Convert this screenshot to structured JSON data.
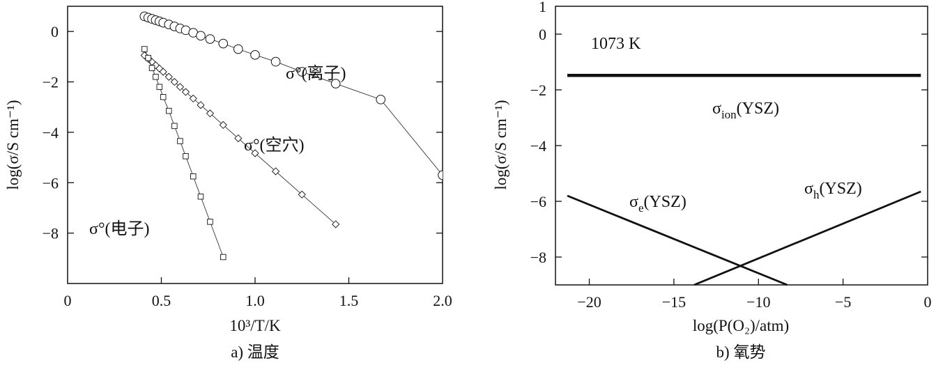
{
  "colors": {
    "ink": "#111111",
    "background": "#ffffff"
  },
  "chart_data": [
    {
      "id": "a",
      "type": "scatter",
      "caption": "a) 温度",
      "xlabel": "10³/T/K",
      "ylabel": "log(σ/S cm⁻¹)",
      "xlim": [
        0,
        2.0
      ],
      "ylim": [
        -10,
        1
      ],
      "xticks": [
        {
          "v": 0,
          "t": "0"
        },
        {
          "v": 0.5,
          "t": "0.5"
        },
        {
          "v": 1.0,
          "t": "1.0"
        },
        {
          "v": 1.5,
          "t": "1.5"
        },
        {
          "v": 2.0,
          "t": "2.0"
        }
      ],
      "yticks": [
        {
          "v": 0,
          "t": "0"
        },
        {
          "v": -2,
          "t": "−2"
        },
        {
          "v": -4,
          "t": "−4"
        },
        {
          "v": -6,
          "t": "−6"
        },
        {
          "v": -8,
          "t": "−8"
        }
      ],
      "grid": false,
      "series": [
        {
          "name": "σ°(离子)",
          "marker": "circle",
          "x": [
            0.41,
            0.43,
            0.45,
            0.47,
            0.49,
            0.51,
            0.54,
            0.57,
            0.6,
            0.63,
            0.67,
            0.71,
            0.76,
            0.83,
            0.91,
            1.0,
            1.11,
            1.25,
            1.43,
            1.67,
            2.0
          ],
          "y": [
            0.6,
            0.55,
            0.5,
            0.45,
            0.4,
            0.35,
            0.28,
            0.2,
            0.12,
            0.05,
            -0.05,
            -0.17,
            -0.3,
            -0.48,
            -0.7,
            -0.93,
            -1.2,
            -1.6,
            -2.07,
            -2.7,
            -5.7
          ]
        },
        {
          "name": "σ°(空穴)",
          "marker": "diamond",
          "x": [
            0.41,
            0.43,
            0.45,
            0.47,
            0.49,
            0.51,
            0.54,
            0.57,
            0.6,
            0.63,
            0.67,
            0.71,
            0.76,
            0.83,
            0.91,
            1.0,
            1.11,
            1.25,
            1.43
          ],
          "y": [
            -0.95,
            -1.08,
            -1.21,
            -1.34,
            -1.47,
            -1.6,
            -1.8,
            -2.0,
            -2.2,
            -2.4,
            -2.66,
            -2.92,
            -3.25,
            -3.71,
            -4.24,
            -4.83,
            -5.55,
            -6.47,
            -7.65
          ]
        },
        {
          "name": "σ°(电子)",
          "marker": "square",
          "x": [
            0.41,
            0.43,
            0.45,
            0.47,
            0.49,
            0.51,
            0.54,
            0.57,
            0.6,
            0.63,
            0.67,
            0.71,
            0.76,
            0.83
          ],
          "y": [
            -0.7,
            -1.05,
            -1.45,
            -1.8,
            -2.2,
            -2.6,
            -3.15,
            -3.75,
            -4.35,
            -4.95,
            -5.75,
            -6.55,
            -7.55,
            -8.95
          ]
        }
      ]
    },
    {
      "id": "b",
      "type": "line",
      "caption": "b) 氧势",
      "xlabel": "log(P(O₂)/atm)",
      "ylabel": "log(σ/S cm⁻¹)",
      "annotation": "1073 K",
      "xlim": [
        -22,
        0
      ],
      "ylim": [
        -9,
        1
      ],
      "xticks": [
        {
          "v": -20,
          "t": "−20"
        },
        {
          "v": -15,
          "t": "−15"
        },
        {
          "v": -10,
          "t": "−10"
        },
        {
          "v": -5,
          "t": "−5"
        },
        {
          "v": 0,
          "t": "0"
        }
      ],
      "yticks": [
        {
          "v": 1,
          "t": "1"
        },
        {
          "v": 0,
          "t": "0"
        },
        {
          "v": -2,
          "t": "−2"
        },
        {
          "v": -4,
          "t": "−4"
        },
        {
          "v": -6,
          "t": "−6"
        },
        {
          "v": -8,
          "t": "−8"
        }
      ],
      "grid": false,
      "series": [
        {
          "name": "σion(YSZ)",
          "base": "σ",
          "sub": "ion",
          "suffix": "(YSZ)",
          "x": [
            -21.3,
            -0.4
          ],
          "y": [
            -1.48,
            -1.48
          ]
        },
        {
          "name": "σe(YSZ)",
          "base": "σ",
          "sub": "e",
          "suffix": "(YSZ)",
          "x": [
            -21.3,
            -8.3
          ],
          "y": [
            -5.8,
            -9.0
          ]
        },
        {
          "name": "σh(YSZ)",
          "base": "σ",
          "sub": "h",
          "suffix": "(YSZ)",
          "x": [
            -13.8,
            -0.4
          ],
          "y": [
            -9.0,
            -5.65
          ]
        }
      ]
    }
  ]
}
